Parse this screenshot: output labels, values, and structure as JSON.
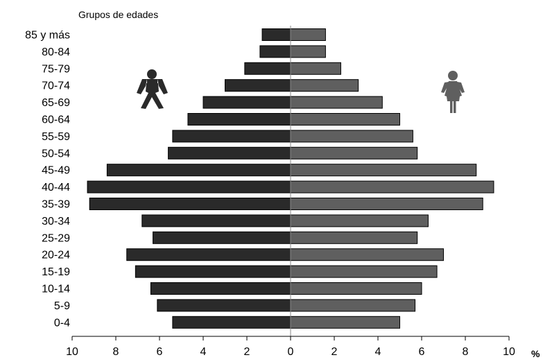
{
  "chart_data": {
    "type": "bar",
    "orientation": "horizontal",
    "ylabel": "Grupos de edades",
    "unit_label": "%",
    "categories": [
      "85 y más",
      "80-84",
      "75-79",
      "70-74",
      "65-69",
      "60-64",
      "55-59",
      "50-54",
      "45-49",
      "40-44",
      "35-39",
      "30-34",
      "25-29",
      "20-24",
      "15-19",
      "10-14",
      "5-9",
      "0-4"
    ],
    "series": [
      {
        "values": [
          1.3,
          1.4,
          2.1,
          3.0,
          4.0,
          4.7,
          5.4,
          5.6,
          8.4,
          9.3,
          9.2,
          6.8,
          6.3,
          7.5,
          7.1,
          6.4,
          6.1,
          5.4
        ],
        "color": "#2a2a2a",
        "side": "left"
      },
      {
        "values": [
          1.6,
          1.6,
          2.3,
          3.1,
          4.2,
          5.0,
          5.6,
          5.8,
          8.5,
          9.3,
          8.8,
          6.3,
          5.8,
          7.0,
          6.7,
          6.0,
          5.7,
          5.0
        ],
        "color": "#5f5f5f",
        "side": "right"
      }
    ],
    "xticks": [
      "10",
      "8",
      "6",
      "4",
      "2",
      "0",
      "2",
      "4",
      "6",
      "8",
      "10"
    ],
    "xlim": [
      -10,
      10
    ],
    "icons": [
      "male-figure-icon",
      "female-figure-icon"
    ],
    "grid": false,
    "legend": "none"
  }
}
